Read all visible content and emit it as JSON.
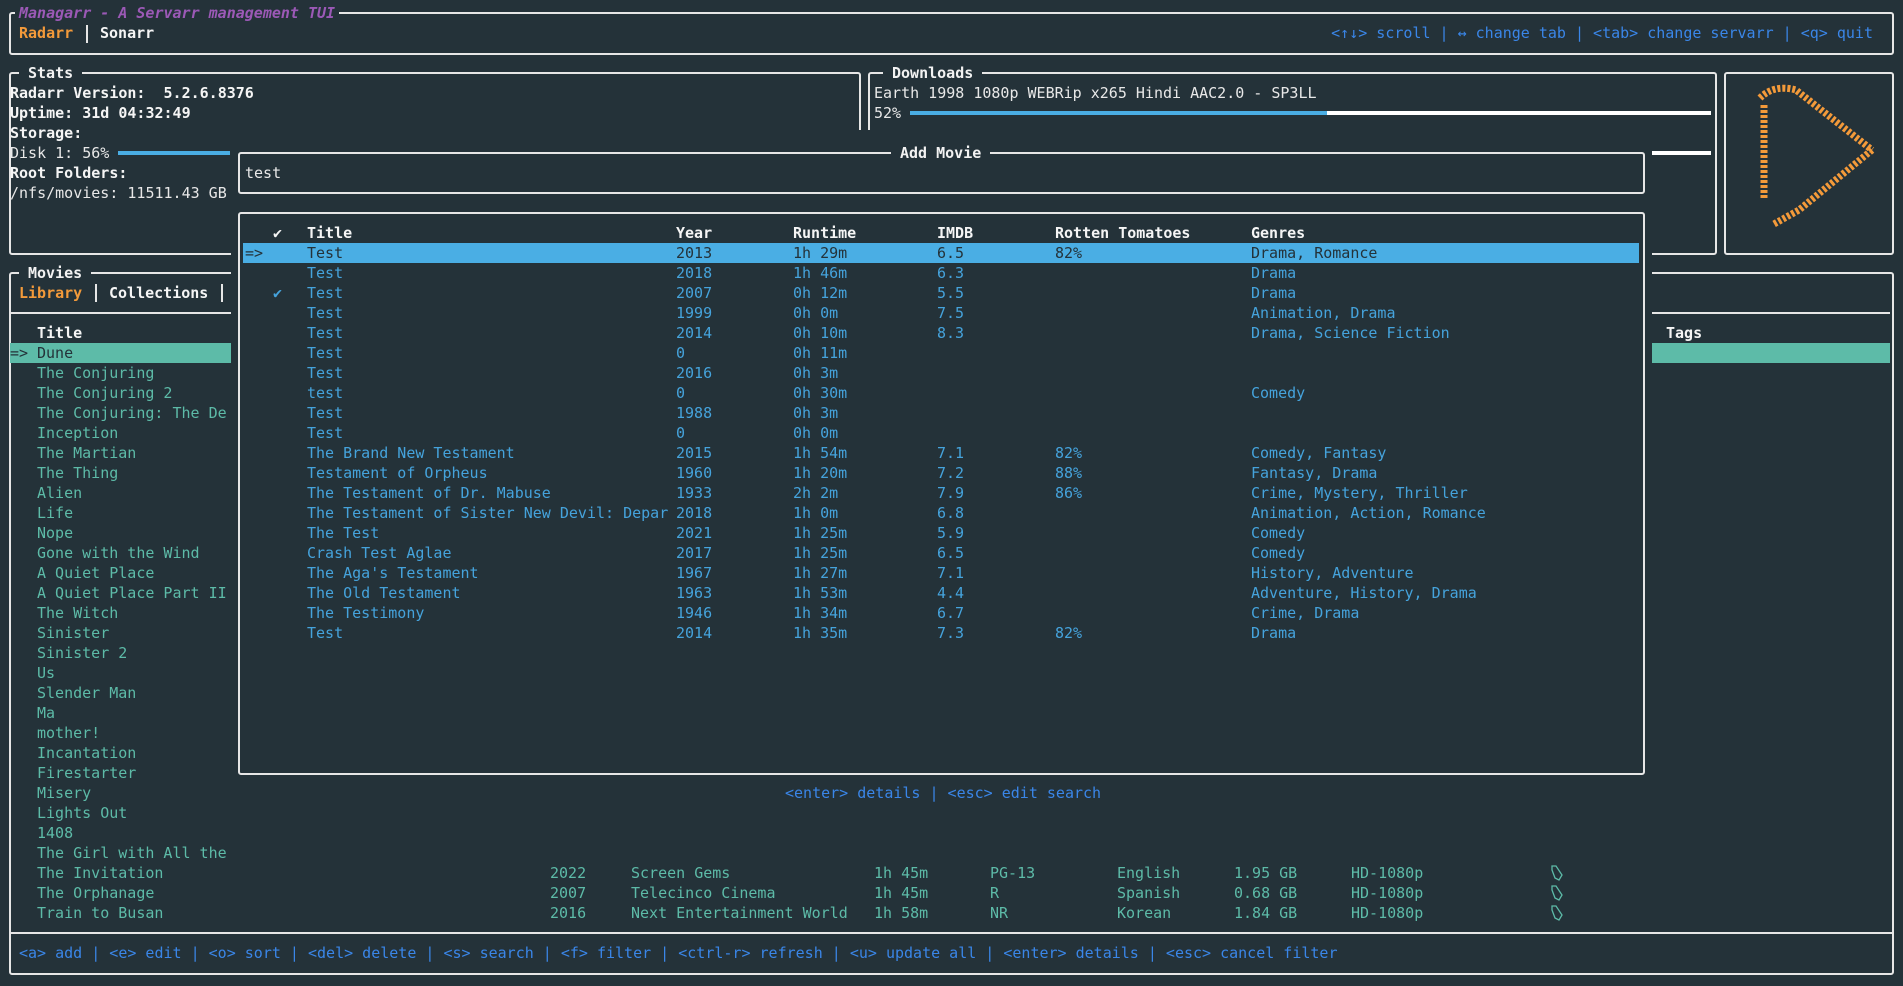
{
  "app": {
    "title": "Managarr - A Servarr management TUI",
    "tabs": [
      {
        "label": "Radarr",
        "active": true
      },
      {
        "label": "Sonarr",
        "active": false
      }
    ],
    "help": "<↑↓> scroll | ↔ change tab | <tab> change servarr | <q> quit"
  },
  "stats": {
    "title": "Stats",
    "version": "Radarr Version:  5.2.6.8376",
    "uptime": "Uptime: 31d 04:32:49",
    "storage_label": "Storage:",
    "disk": "Disk 1: 56%",
    "disk_percent": 56,
    "root_label": "Root Folders:",
    "root": "/nfs/movies: 11511.43 GB"
  },
  "downloads": {
    "title": "Downloads",
    "items": [
      {
        "name": "Earth 1998 1080p WEBRip x265 Hindi AAC2.0 - SP3LL",
        "progress_label": "52%",
        "progress": 52
      }
    ]
  },
  "logo": {
    "icon": "radarr-logo-icon",
    "color": "#f39a3a"
  },
  "movies": {
    "title": "Movies",
    "tabs": [
      {
        "label": "Library",
        "active": true
      },
      {
        "label": "Collections",
        "active": false
      }
    ],
    "columns": {
      "title": "Title",
      "tags": "Tags"
    },
    "selected_marker": "=>",
    "rows": [
      {
        "title": "Dune"
      },
      {
        "title": "The Conjuring"
      },
      {
        "title": "The Conjuring 2"
      },
      {
        "title": "The Conjuring: The De"
      },
      {
        "title": "Inception"
      },
      {
        "title": "The Martian"
      },
      {
        "title": "The Thing"
      },
      {
        "title": "Alien"
      },
      {
        "title": "Life"
      },
      {
        "title": "Nope"
      },
      {
        "title": "Gone with the Wind"
      },
      {
        "title": "A Quiet Place"
      },
      {
        "title": "A Quiet Place Part II"
      },
      {
        "title": "The Witch"
      },
      {
        "title": "Sinister"
      },
      {
        "title": "Sinister 2"
      },
      {
        "title": "Us"
      },
      {
        "title": "Slender Man"
      },
      {
        "title": "Ma"
      },
      {
        "title": "mother!"
      },
      {
        "title": "Incantation"
      },
      {
        "title": "Firestarter"
      },
      {
        "title": "Misery"
      },
      {
        "title": "Lights Out"
      },
      {
        "title": "1408"
      },
      {
        "title": "The Girl with All the"
      },
      {
        "title": "The Invitation",
        "year": "2022",
        "studio": "Screen Gems",
        "runtime": "1h 45m",
        "rating": "PG-13",
        "language": "English",
        "size": "1.95 GB",
        "quality": "HD-1080p",
        "tag_icon": "tag-icon"
      },
      {
        "title": "The Orphanage",
        "year": "2007",
        "studio": "Telecinco Cinema",
        "runtime": "1h 45m",
        "rating": "R",
        "language": "Spanish",
        "size": "0.68 GB",
        "quality": "HD-1080p",
        "tag_icon": "tag-icon"
      },
      {
        "title": "Train to Busan",
        "year": "2016",
        "studio": "Next Entertainment World",
        "runtime": "1h 58m",
        "rating": "NR",
        "language": "Korean",
        "size": "1.84 GB",
        "quality": "HD-1080p",
        "tag_icon": "tag-icon"
      }
    ],
    "help": "<a> add | <e> edit | <o> sort | <del> delete | <s> search | <f> filter | <ctrl-r> refresh | <u> update all | <enter> details | <esc> cancel filter"
  },
  "add_movie": {
    "title": "Add Movie",
    "search_value": "test",
    "columns": {
      "check": "✔",
      "title": "Title",
      "year": "Year",
      "runtime": "Runtime",
      "imdb": "IMDB",
      "rt": "Rotten Tomatoes",
      "genres": "Genres"
    },
    "selected_marker": "=>",
    "results": [
      {
        "check": "",
        "title": "Test",
        "year": "2013",
        "runtime": "1h 29m",
        "imdb": "6.5",
        "rt": "82%",
        "genres": "Drama, Romance"
      },
      {
        "check": "",
        "title": "Test",
        "year": "2018",
        "runtime": "1h 46m",
        "imdb": "6.3",
        "rt": "",
        "genres": "Drama"
      },
      {
        "check": "✔",
        "title": "Test",
        "year": "2007",
        "runtime": "0h 12m",
        "imdb": "5.5",
        "rt": "",
        "genres": "Drama"
      },
      {
        "check": "",
        "title": "Test",
        "year": "1999",
        "runtime": "0h 0m",
        "imdb": "7.5",
        "rt": "",
        "genres": "Animation, Drama"
      },
      {
        "check": "",
        "title": "Test",
        "year": "2014",
        "runtime": "0h 10m",
        "imdb": "8.3",
        "rt": "",
        "genres": "Drama, Science Fiction"
      },
      {
        "check": "",
        "title": "Test",
        "year": "0",
        "runtime": "0h 11m",
        "imdb": "",
        "rt": "",
        "genres": ""
      },
      {
        "check": "",
        "title": "Test",
        "year": "2016",
        "runtime": "0h 3m",
        "imdb": "",
        "rt": "",
        "genres": ""
      },
      {
        "check": "",
        "title": "test",
        "year": "0",
        "runtime": "0h 30m",
        "imdb": "",
        "rt": "",
        "genres": "Comedy"
      },
      {
        "check": "",
        "title": "Test",
        "year": "1988",
        "runtime": "0h 3m",
        "imdb": "",
        "rt": "",
        "genres": ""
      },
      {
        "check": "",
        "title": "Test",
        "year": "0",
        "runtime": "0h 0m",
        "imdb": "",
        "rt": "",
        "genres": ""
      },
      {
        "check": "",
        "title": "The Brand New Testament",
        "year": "2015",
        "runtime": "1h 54m",
        "imdb": "7.1",
        "rt": "82%",
        "genres": "Comedy, Fantasy"
      },
      {
        "check": "",
        "title": "Testament of Orpheus",
        "year": "1960",
        "runtime": "1h 20m",
        "imdb": "7.2",
        "rt": "88%",
        "genres": "Fantasy, Drama"
      },
      {
        "check": "",
        "title": "The Testament of Dr. Mabuse",
        "year": "1933",
        "runtime": "2h 2m",
        "imdb": "7.9",
        "rt": "86%",
        "genres": "Crime, Mystery, Thriller"
      },
      {
        "check": "",
        "title": "The Testament of Sister New Devil: Depar",
        "year": "2018",
        "runtime": "1h 0m",
        "imdb": "6.8",
        "rt": "",
        "genres": "Animation, Action, Romance"
      },
      {
        "check": "",
        "title": "The Test",
        "year": "2021",
        "runtime": "1h 25m",
        "imdb": "5.9",
        "rt": "",
        "genres": "Comedy"
      },
      {
        "check": "",
        "title": "Crash Test Aglae",
        "year": "2017",
        "runtime": "1h 25m",
        "imdb": "6.5",
        "rt": "",
        "genres": "Comedy"
      },
      {
        "check": "",
        "title": "The Aga's Testament",
        "year": "1967",
        "runtime": "1h 27m",
        "imdb": "7.1",
        "rt": "",
        "genres": "History, Adventure"
      },
      {
        "check": "",
        "title": "The Old Testament",
        "year": "1963",
        "runtime": "1h 53m",
        "imdb": "4.4",
        "rt": "",
        "genres": "Adventure, History, Drama"
      },
      {
        "check": "",
        "title": "The Testimony",
        "year": "1946",
        "runtime": "1h 34m",
        "imdb": "6.7",
        "rt": "",
        "genres": "Crime, Drama"
      },
      {
        "check": "",
        "title": "Test",
        "year": "2014",
        "runtime": "1h 35m",
        "imdb": "7.3",
        "rt": "82%",
        "genres": "Drama"
      }
    ],
    "help": "<enter> details | <esc> edit search"
  },
  "colors": {
    "background": "#243239",
    "accent_orange": "#f39a3a",
    "title_purple": "#9b59b6",
    "highlight_teal": "#5dbba8",
    "highlight_blue": "#4aaee4",
    "help_blue": "#3a86e8"
  }
}
